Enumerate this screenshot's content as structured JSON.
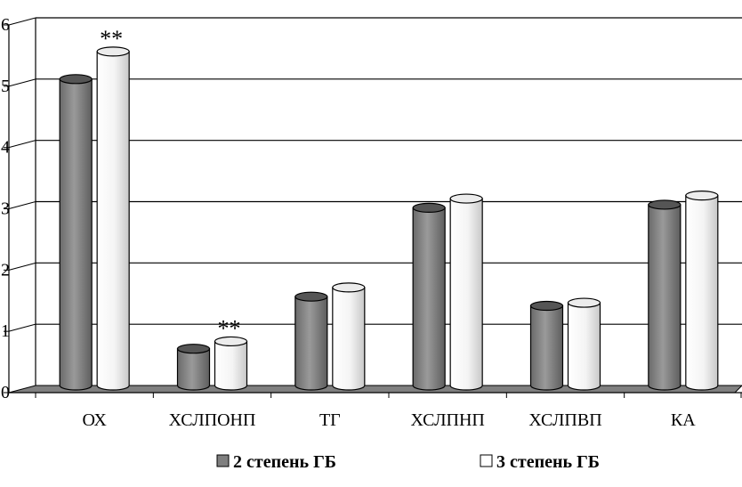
{
  "chart_data": {
    "type": "bar",
    "style": "3d-cylinder",
    "categories": [
      "ОХ",
      "ХСЛПОНП",
      "ТГ",
      "ХСЛПНП",
      "ХСЛПВП",
      "КА"
    ],
    "series": [
      {
        "name": "2 степень ГБ",
        "color": "#7f7f7f",
        "values": [
          5.0,
          0.6,
          1.45,
          2.9,
          1.3,
          2.95
        ]
      },
      {
        "name": "3 степень ГБ",
        "color": "#ffffff",
        "values": [
          5.45,
          0.72,
          1.6,
          3.05,
          1.35,
          3.1
        ]
      }
    ],
    "annotations": [
      {
        "category": "ОХ",
        "series": "3 степень ГБ",
        "text": "**"
      },
      {
        "category": "ХСЛПОНП",
        "series": "3 степень ГБ",
        "text": "**"
      }
    ],
    "ylim": [
      0,
      6
    ],
    "yticks": [
      "0",
      "1",
      "2",
      "3",
      "4",
      "5",
      "6"
    ],
    "grid": true,
    "legend_position": "bottom",
    "title": "",
    "xlabel": "",
    "ylabel": ""
  }
}
